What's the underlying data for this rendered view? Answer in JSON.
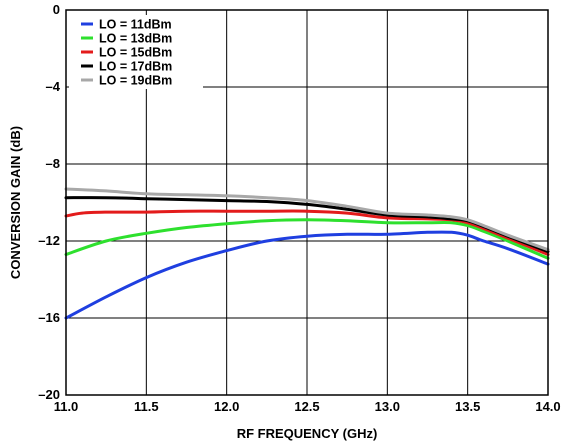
{
  "chart_data": {
    "type": "line",
    "title": "",
    "xlabel": "RF FREQUENCY (GHz)",
    "ylabel": "CONVERSION GAIN (dB)",
    "xlim": [
      11.0,
      14.0
    ],
    "ylim": [
      -20,
      0
    ],
    "x_ticks": [
      "11.0",
      "11.5",
      "12.0",
      "12.5",
      "13.0",
      "13.5",
      "14.0"
    ],
    "y_ticks": [
      "0",
      "–4",
      "–8",
      "–12",
      "–16",
      "–20"
    ],
    "grid": true,
    "legend_position": "top-left",
    "series": [
      {
        "name": "LO = 11dBm",
        "color": "#1f3fe0",
        "x": [
          11.0,
          11.25,
          11.5,
          11.75,
          12.0,
          12.25,
          12.5,
          12.75,
          13.0,
          13.25,
          13.4,
          13.5,
          13.6,
          13.75,
          14.0
        ],
        "y": [
          -16.0,
          -14.9,
          -13.9,
          -13.1,
          -12.5,
          -12.0,
          -11.75,
          -11.65,
          -11.65,
          -11.55,
          -11.55,
          -11.7,
          -12.0,
          -12.4,
          -13.2
        ]
      },
      {
        "name": "LO = 13dBm",
        "color": "#2ee02e",
        "x": [
          11.0,
          11.25,
          11.5,
          11.75,
          12.0,
          12.25,
          12.5,
          12.75,
          13.0,
          13.25,
          13.4,
          13.5,
          13.6,
          13.75,
          14.0
        ],
        "y": [
          -12.7,
          -12.0,
          -11.6,
          -11.3,
          -11.1,
          -10.95,
          -10.9,
          -10.95,
          -11.05,
          -11.05,
          -11.05,
          -11.2,
          -11.5,
          -12.0,
          -12.9
        ]
      },
      {
        "name": "LO = 15dBm",
        "color": "#e31b1b",
        "x": [
          11.0,
          11.1,
          11.25,
          11.5,
          11.75,
          12.0,
          12.25,
          12.5,
          12.75,
          13.0,
          13.25,
          13.4,
          13.5,
          13.6,
          13.75,
          14.0
        ],
        "y": [
          -10.7,
          -10.55,
          -10.5,
          -10.5,
          -10.45,
          -10.45,
          -10.45,
          -10.45,
          -10.55,
          -10.8,
          -10.85,
          -10.9,
          -11.05,
          -11.35,
          -11.85,
          -12.7
        ]
      },
      {
        "name": "LO = 17dBm",
        "color": "#000000",
        "x": [
          11.0,
          11.25,
          11.5,
          11.75,
          12.0,
          12.25,
          12.5,
          12.75,
          13.0,
          13.25,
          13.4,
          13.5,
          13.6,
          13.75,
          14.0
        ],
        "y": [
          -9.75,
          -9.75,
          -9.8,
          -9.85,
          -9.9,
          -9.95,
          -10.1,
          -10.35,
          -10.65,
          -10.75,
          -10.85,
          -10.95,
          -11.25,
          -11.75,
          -12.55
        ]
      },
      {
        "name": "LO = 19dBm",
        "color": "#a8a8a8",
        "x": [
          11.0,
          11.25,
          11.5,
          11.75,
          12.0,
          12.25,
          12.5,
          12.75,
          13.0,
          13.25,
          13.4,
          13.5,
          13.6,
          13.75,
          14.0
        ],
        "y": [
          -9.3,
          -9.4,
          -9.55,
          -9.6,
          -9.65,
          -9.75,
          -9.9,
          -10.2,
          -10.55,
          -10.65,
          -10.75,
          -10.9,
          -11.2,
          -11.7,
          -12.45
        ]
      }
    ]
  }
}
